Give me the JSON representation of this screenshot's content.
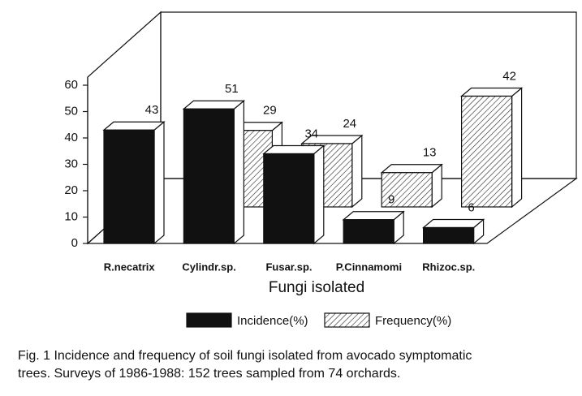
{
  "chart_data": {
    "type": "bar3d",
    "x_label": "Fungi isolated",
    "categories": [
      "R.necatrix",
      "Cylindr.sp.",
      "Fusar.sp.",
      "P.Cinnamomi",
      "Rhizoc.sp."
    ],
    "series": [
      {
        "name": "Incidence(%)",
        "color": "#111111",
        "values": [
          43,
          51,
          34,
          9,
          6
        ]
      },
      {
        "name": "Frequency(%)",
        "color": "hatch",
        "values": [
          null,
          29,
          24,
          13,
          42
        ]
      }
    ],
    "ylim": [
      0,
      60
    ],
    "yticks": [
      0,
      10,
      20,
      30,
      40,
      50,
      60
    ]
  },
  "caption": [
    "Fig. 1  Incidence and frequency of soil fungi isolated from avocado symptomatic",
    "trees.  Surveys of 1986-1988: 152 trees sampled from 74 orchards."
  ]
}
